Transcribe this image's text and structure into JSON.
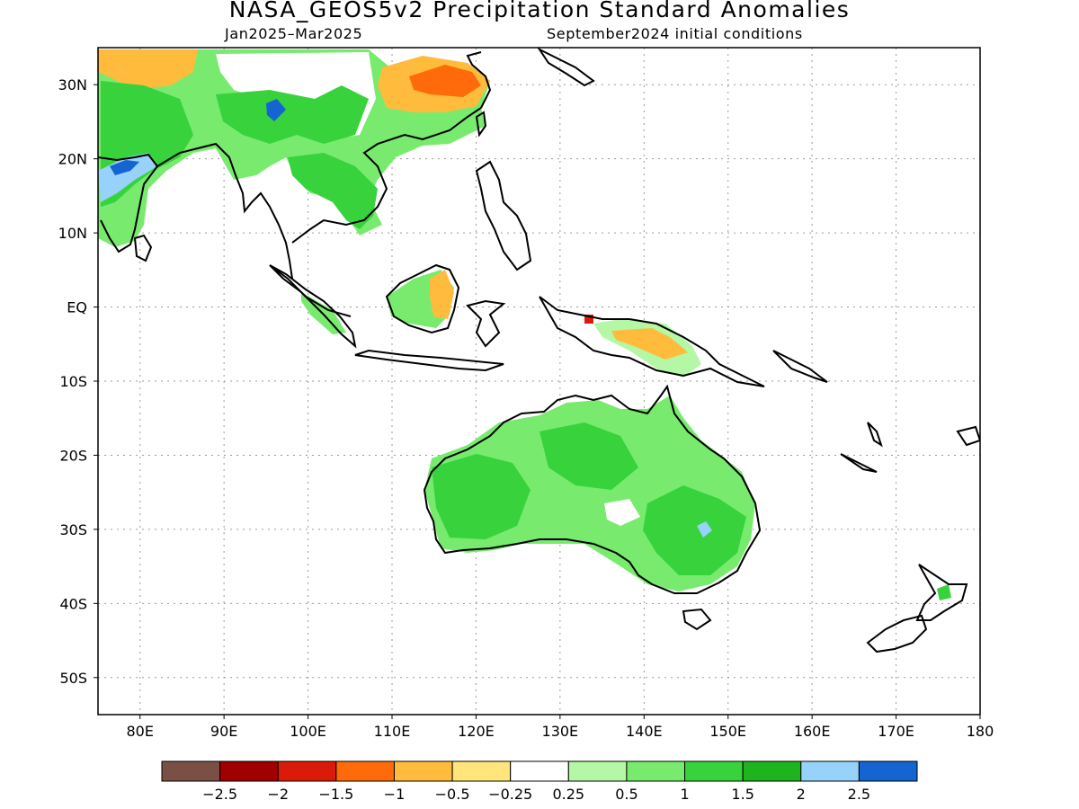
{
  "title": "NASA_GEOS5v2 Precipitation Standard Anomalies",
  "subtitle_left": "Jan2025–Mar2025",
  "subtitle_right": "September2024 initial conditions",
  "map": {
    "lon_range": [
      75,
      180
    ],
    "lat_range": [
      -55,
      35
    ],
    "lon_labels": [
      {
        "lon": 80,
        "text": "80E"
      },
      {
        "lon": 90,
        "text": "90E"
      },
      {
        "lon": 100,
        "text": "100E"
      },
      {
        "lon": 110,
        "text": "110E"
      },
      {
        "lon": 120,
        "text": "120E"
      },
      {
        "lon": 130,
        "text": "130E"
      },
      {
        "lon": 140,
        "text": "140E"
      },
      {
        "lon": 150,
        "text": "150E"
      },
      {
        "lon": 160,
        "text": "160E"
      },
      {
        "lon": 170,
        "text": "170E"
      },
      {
        "lon": 180,
        "text": "180"
      }
    ],
    "lat_labels": [
      {
        "lat": 30,
        "text": "30N"
      },
      {
        "lat": 20,
        "text": "20N"
      },
      {
        "lat": 10,
        "text": "10N"
      },
      {
        "lat": 0,
        "text": "EQ"
      },
      {
        "lat": -10,
        "text": "10S"
      },
      {
        "lat": -20,
        "text": "20S"
      },
      {
        "lat": -30,
        "text": "30S"
      },
      {
        "lat": -40,
        "text": "40S"
      },
      {
        "lat": -50,
        "text": "50S"
      }
    ],
    "grid": "dotted"
  },
  "colorbar": {
    "colors": [
      "#7a5044",
      "#a00000",
      "#dc1a0a",
      "#ff6a0a",
      "#ffbb3c",
      "#ffe57c",
      "#ffffff",
      "#b4f7a4",
      "#78ea6e",
      "#37d23c",
      "#1eb41e",
      "#96d2fa",
      "#1464d2"
    ],
    "labels": [
      "−2.5",
      "−2",
      "−1.5",
      "−1",
      "−0.5",
      "−0.25",
      "0.25",
      "0.5",
      "1",
      "1.5",
      "2",
      "2.5"
    ]
  }
}
